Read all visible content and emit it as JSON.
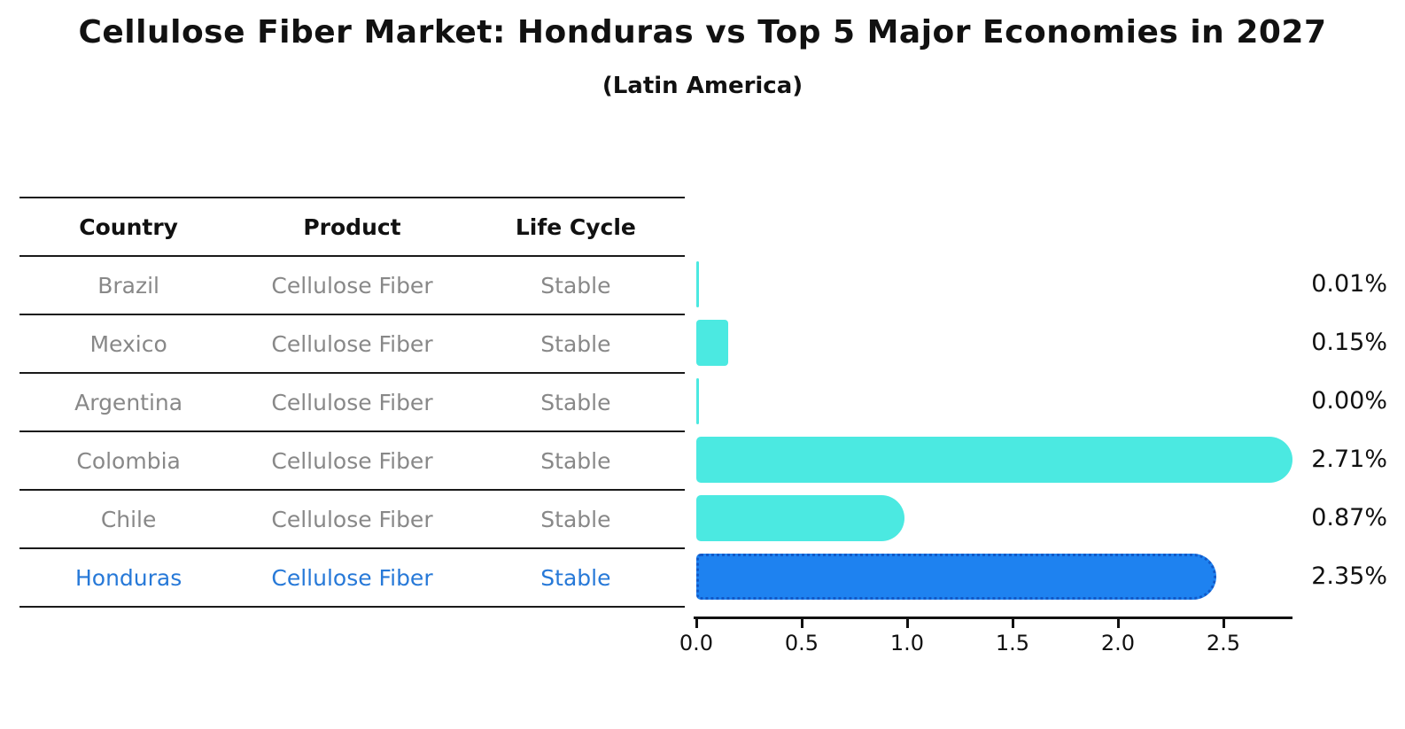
{
  "title": "Cellulose Fiber Market: Honduras vs Top 5 Major Economies in 2027",
  "subtitle": "(Latin America)",
  "table": {
    "headers": [
      "Country",
      "Product",
      "Life Cycle"
    ],
    "rows": [
      {
        "country": "Brazil",
        "product": "Cellulose Fiber",
        "life_cycle": "Stable",
        "highlight": false
      },
      {
        "country": "Mexico",
        "product": "Cellulose Fiber",
        "life_cycle": "Stable",
        "highlight": false
      },
      {
        "country": "Argentina",
        "product": "Cellulose Fiber",
        "life_cycle": "Stable",
        "highlight": false
      },
      {
        "country": "Colombia",
        "product": "Cellulose Fiber",
        "life_cycle": "Stable",
        "highlight": false
      },
      {
        "country": "Chile",
        "product": "Cellulose Fiber",
        "life_cycle": "Stable",
        "highlight": false
      },
      {
        "country": "Honduras",
        "product": "Cellulose Fiber",
        "life_cycle": "Stable",
        "highlight": true
      }
    ]
  },
  "chart_data": {
    "type": "bar",
    "orientation": "horizontal",
    "title": "Cellulose Fiber Market: Honduras vs Top 5 Major Economies in 2027",
    "subtitle": "(Latin America)",
    "categories": [
      "Brazil",
      "Mexico",
      "Argentina",
      "Colombia",
      "Chile",
      "Honduras"
    ],
    "values": [
      0.01,
      0.15,
      0.0,
      2.71,
      0.87,
      2.35
    ],
    "value_labels": [
      "0.01%",
      "0.15%",
      "0.00%",
      "2.71%",
      "0.87%",
      "2.35%"
    ],
    "highlight_category": "Honduras",
    "xlabel": "",
    "ylabel": "",
    "xlim": [
      0.0,
      2.83
    ],
    "xticks": [
      "0.0",
      "0.5",
      "1.0",
      "1.5",
      "2.0",
      "2.5"
    ],
    "xtick_values": [
      0.0,
      0.5,
      1.0,
      1.5,
      2.0,
      2.5
    ],
    "grid": false,
    "legend": false,
    "colors": {
      "bar": "#4be9e1",
      "highlight_bar": "#1e82f0",
      "highlight_edge": "#1259c8",
      "text": "#111111",
      "muted_text": "#888888",
      "highlight_text": "#2779d8"
    }
  }
}
